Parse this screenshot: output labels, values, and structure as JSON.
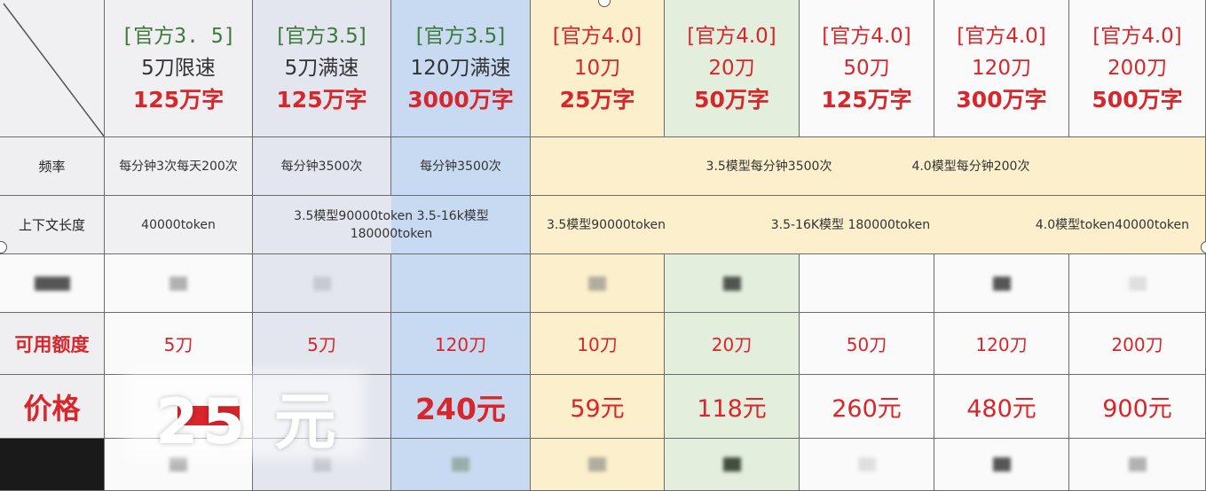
{
  "columns": [
    {
      "line1": "[官方3. 5]",
      "line2": "5刀限速",
      "line3": "125万字",
      "tone": "green"
    },
    {
      "line1": "[官方3.5]",
      "line2": "5刀满速",
      "line3": "125万字",
      "tone": "green"
    },
    {
      "line1": "[官方3.5]",
      "line2": "120刀满速",
      "line3": "3000万字",
      "tone": "green"
    },
    {
      "line1": "[官方4.0]",
      "line2": "10刀",
      "line3": "25万字",
      "tone": "red"
    },
    {
      "line1": "[官方4.0]",
      "line2": "20刀",
      "line3": "50万字",
      "tone": "red"
    },
    {
      "line1": "[官方4.0]",
      "line2": "50刀",
      "line3": "125万字",
      "tone": "red"
    },
    {
      "line1": "[官方4.0]",
      "line2": "120刀",
      "line3": "300万字",
      "tone": "red"
    },
    {
      "line1": "[官方4.0]",
      "line2": "200刀",
      "line3": "500万字",
      "tone": "red"
    }
  ],
  "rows": {
    "frequency": {
      "label": "频率",
      "c1": "每分钟3次每天200次",
      "c2": "每分钟3500次",
      "c3": "每分钟3500次",
      "merged_a": "3.5模型每分钟3500次",
      "merged_b": "4.0模型每分钟200次"
    },
    "context": {
      "label": "上下文长度",
      "c1": "40000token",
      "c23": "3.5模型90000token   3.5-16k模型 180000token",
      "merged_a": "3.5模型90000token",
      "merged_b": "3.5-16K模型 180000token",
      "merged_c": "4.0模型token40000token"
    },
    "quota": {
      "label": "可用额度",
      "values": [
        "5刀",
        "5刀",
        "120刀",
        "10刀",
        "20刀",
        "50刀",
        "120刀",
        "200刀"
      ]
    },
    "price": {
      "label": "价格",
      "values": [
        "",
        "",
        "240元",
        "59元",
        "118元",
        "260元",
        "480元",
        "900元"
      ]
    }
  },
  "overlay_text": "25 元",
  "colors": {
    "red": "#d8262a",
    "green": "#3e7a3c",
    "blue_col": "#c8daf2",
    "cream_col": "#fbefcc",
    "green_col": "#e3eedd"
  }
}
